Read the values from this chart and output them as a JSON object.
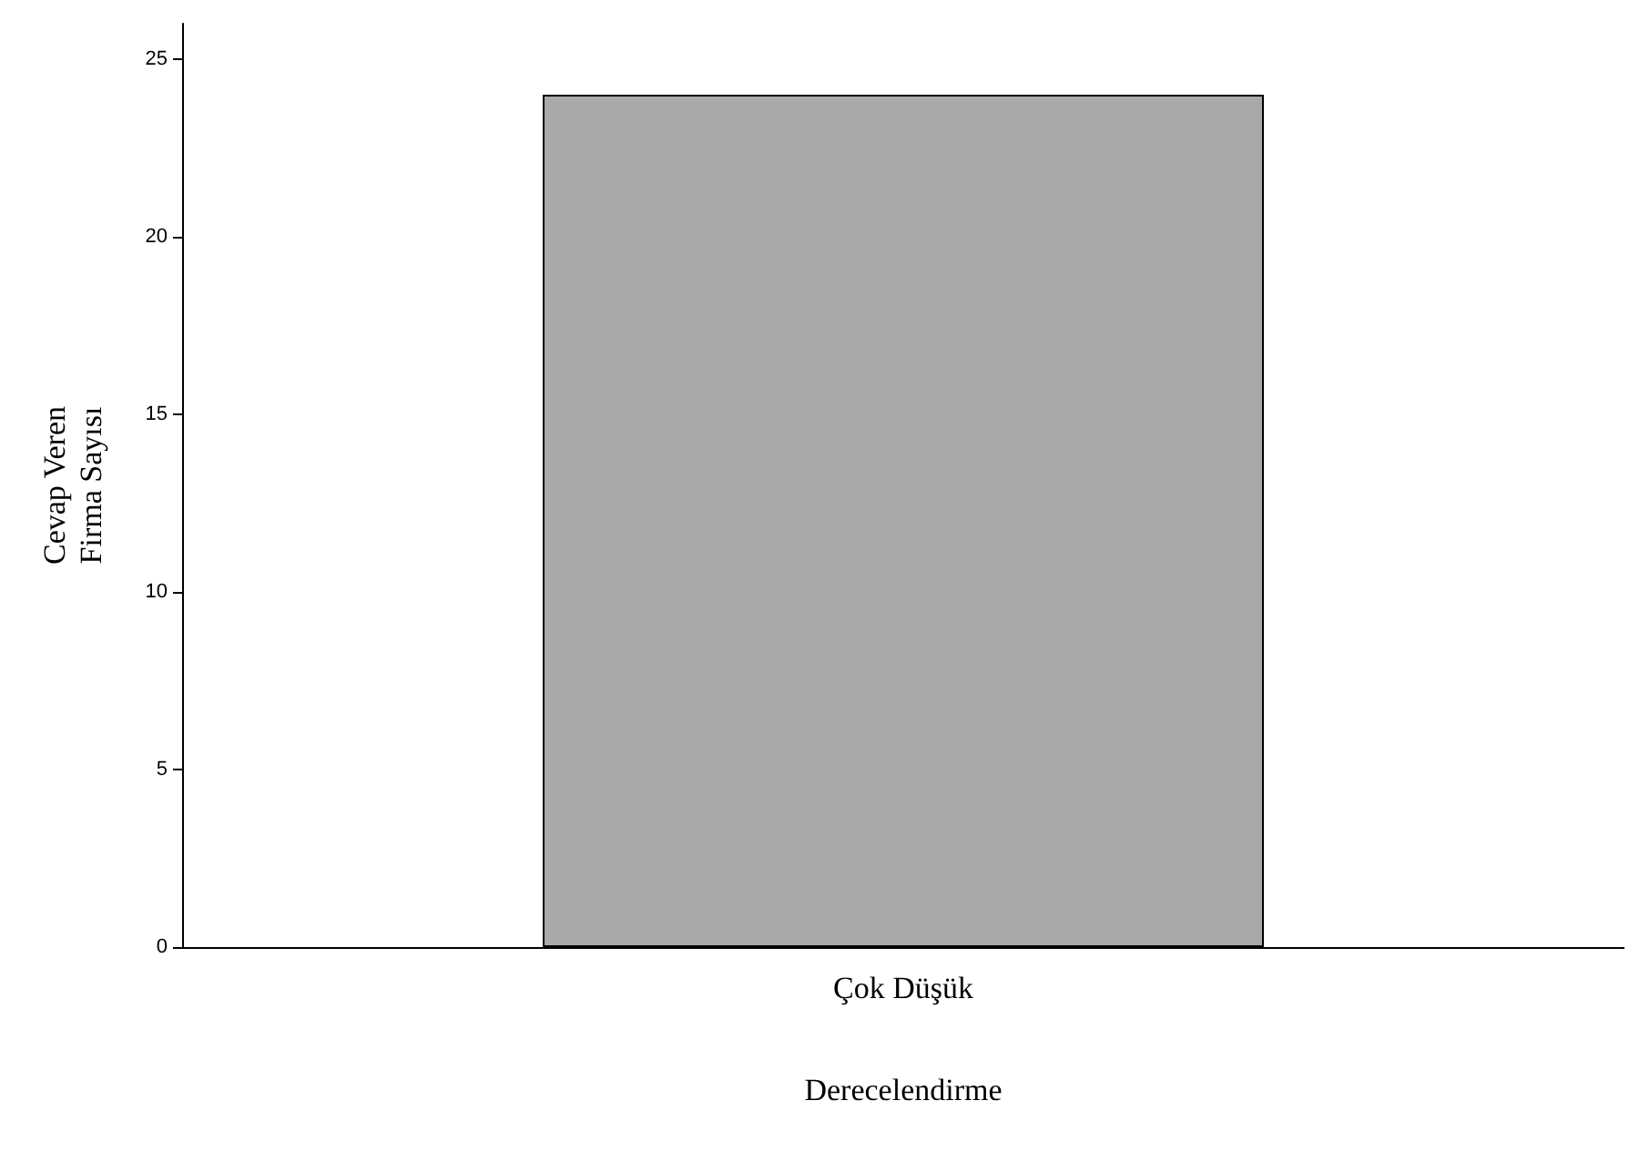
{
  "chart_data": {
    "type": "bar",
    "categories": [
      "Çok Düşük"
    ],
    "values": [
      24
    ],
    "color": "#a9a9a9",
    "xlabel": "Derecelendirme",
    "ylabel": "Cevap Veren\nFirma Sayısı",
    "ylim": [
      0,
      26
    ],
    "yticks": [
      0,
      5,
      10,
      15,
      20,
      25
    ],
    "grid": false
  }
}
